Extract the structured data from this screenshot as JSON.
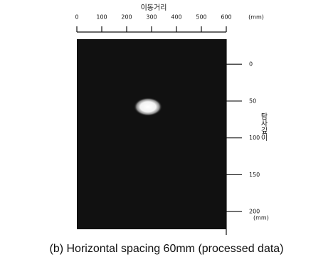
{
  "chart_data": {
    "type": "image",
    "title": "이동거리",
    "x_unit": "(mm)",
    "xlim": [
      0,
      600
    ],
    "xticks": [
      0,
      100,
      200,
      300,
      400,
      500,
      600
    ],
    "ylabel": "탐사깊이",
    "y_unit": "(mm)",
    "ylim": [
      -34,
      224
    ],
    "yticks": [
      0,
      50,
      100,
      150,
      200
    ],
    "caption": "(b) Horizontal spacing 60mm (processed data)"
  }
}
